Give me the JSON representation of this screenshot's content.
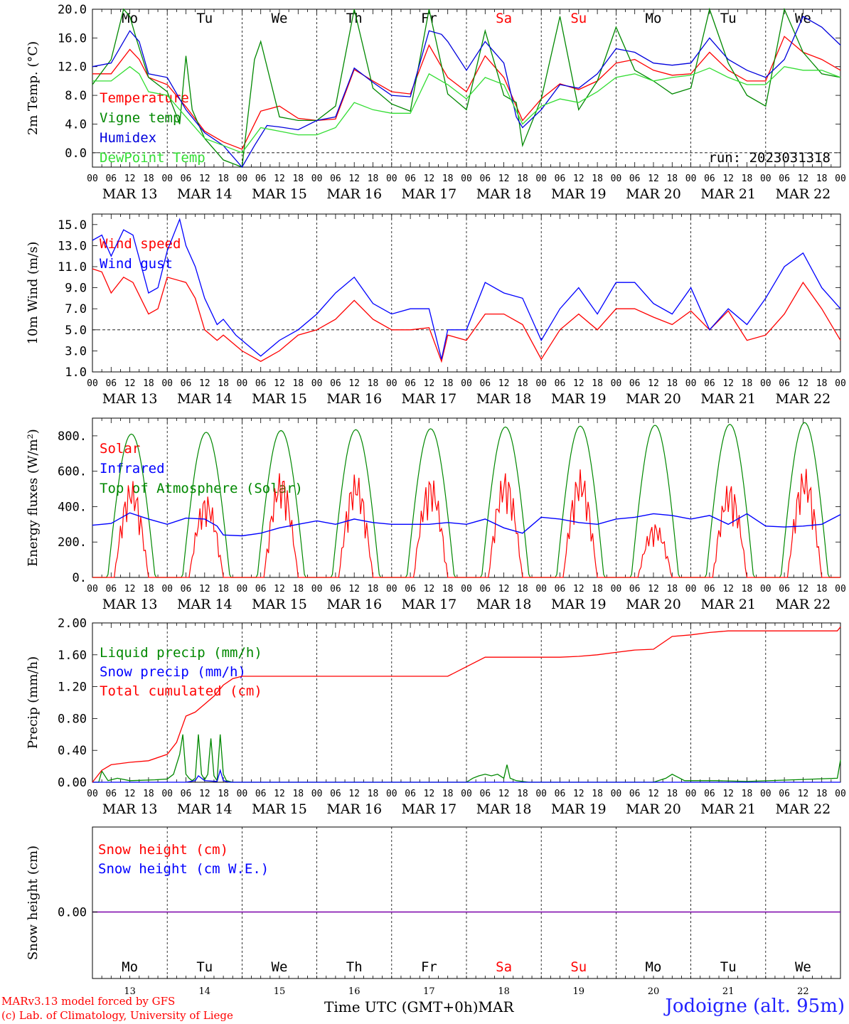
{
  "footer": {
    "model_line": "MARv3.13 model forced by GFS",
    "lab_line": "(c) Lab. of Climatology, University of Liege",
    "time_label": "Time UTC (GMT+0h)",
    "month": "MAR",
    "station": "Jodoigne (alt. 95m)"
  },
  "days": {
    "weekdays": [
      "Mo",
      "Tu",
      "We",
      "Th",
      "Fr",
      "Sa",
      "Su",
      "Mo",
      "Tu",
      "We"
    ],
    "dates": [
      "MAR 13",
      "MAR 14",
      "MAR 15",
      "MAR 16",
      "MAR 17",
      "MAR 18",
      "MAR 19",
      "MAR 20",
      "MAR 21",
      "MAR 22"
    ],
    "day_numbers": [
      "13",
      "14",
      "15",
      "16",
      "17",
      "18",
      "19",
      "20",
      "21",
      "22"
    ],
    "weekend_color": "#ff0000",
    "hour_ticks": [
      "00",
      "06",
      "12",
      "18"
    ],
    "final_tick": "00"
  },
  "chart_data": [
    {
      "type": "line",
      "ylabel": "2m Temp. (°C)",
      "ylim": [
        -2,
        20
      ],
      "yticks": [
        "0.0",
        "4.0",
        "8.0",
        "12.0",
        "16.0",
        "20.0"
      ],
      "ytick_values": [
        0,
        4,
        8,
        12,
        16,
        20
      ],
      "reference_line": 0,
      "annotation": "run: 2023031318",
      "legend_position": "top-left",
      "x_unit": "hours since MAR 13 00 UTC",
      "series": [
        {
          "name": "Temperature",
          "color": "#ff0000",
          "x": [
            0,
            6,
            12,
            15,
            18,
            24,
            30,
            36,
            42,
            48,
            54,
            60,
            66,
            72,
            78,
            84,
            90,
            96,
            102,
            108,
            114,
            120,
            126,
            132,
            138,
            144,
            150,
            156,
            162,
            168,
            174,
            180,
            186,
            192,
            198,
            204,
            210,
            216,
            222,
            228,
            234,
            240
          ],
          "y": [
            11,
            11,
            14.4,
            13,
            10.5,
            9.5,
            6.4,
            3,
            1.5,
            0.5,
            5.8,
            6.5,
            4.8,
            4.5,
            4.7,
            11.6,
            10,
            8.5,
            8.2,
            15,
            10.5,
            8.5,
            13.5,
            10.5,
            4.5,
            7.5,
            9.6,
            8.8,
            10,
            12.5,
            13,
            11.5,
            10.8,
            11,
            14,
            11.5,
            10,
            10,
            16.2,
            14,
            13,
            11.5
          ]
        },
        {
          "name": "Vigne temp",
          "color": "#008800",
          "x": [
            0,
            6,
            10,
            12,
            14,
            18,
            24,
            28,
            30,
            32,
            36,
            42,
            48,
            52,
            54,
            60,
            66,
            72,
            78,
            84,
            90,
            96,
            102,
            108,
            114,
            120,
            126,
            132,
            136,
            138,
            144,
            150,
            156,
            162,
            168,
            174,
            180,
            186,
            192,
            198,
            204,
            210,
            216,
            222,
            228,
            234,
            240
          ],
          "y": [
            9.5,
            13,
            20,
            19,
            16,
            10.5,
            8.5,
            4,
            13.5,
            6,
            2,
            -1,
            -2,
            13,
            15.5,
            5,
            4.5,
            4.5,
            6.5,
            20,
            9,
            6.8,
            5.8,
            20,
            8.2,
            6,
            17,
            8,
            7,
            1,
            7.5,
            19,
            6,
            10,
            17.5,
            11.5,
            10,
            8.2,
            9,
            20,
            12.5,
            8,
            6.5,
            20,
            14,
            11,
            10.5
          ]
        },
        {
          "name": "Humidex",
          "color": "#0000dd",
          "x": [
            0,
            6,
            12,
            15,
            18,
            24,
            30,
            36,
            42,
            48,
            52,
            56,
            60,
            66,
            72,
            78,
            84,
            90,
            96,
            102,
            108,
            112,
            114,
            120,
            126,
            132,
            136,
            138,
            144,
            150,
            156,
            162,
            168,
            174,
            180,
            186,
            192,
            198,
            204,
            210,
            216,
            222,
            228,
            234,
            240
          ],
          "y": [
            12,
            12.5,
            17,
            15.5,
            11,
            10.5,
            6,
            2.8,
            1,
            -2,
            1,
            3.8,
            3.6,
            3.2,
            4.5,
            5,
            11.8,
            9.8,
            8,
            7.8,
            17,
            16.5,
            15.5,
            11.5,
            15.5,
            12.5,
            5,
            3.5,
            6,
            9.5,
            9,
            11,
            14.5,
            14,
            12.5,
            12.2,
            12.5,
            16,
            13,
            11.5,
            10.5,
            13,
            19,
            17.5,
            15
          ]
        },
        {
          "name": "DewPoint Temp",
          "color": "#33dd33",
          "x": [
            0,
            6,
            12,
            15,
            18,
            24,
            30,
            36,
            42,
            48,
            54,
            60,
            66,
            72,
            78,
            84,
            90,
            96,
            102,
            108,
            114,
            120,
            126,
            132,
            138,
            144,
            150,
            156,
            162,
            168,
            174,
            180,
            186,
            192,
            198,
            204,
            210,
            216,
            222,
            228,
            234,
            240
          ],
          "y": [
            10,
            10,
            12,
            11,
            8.5,
            8,
            5,
            2,
            1,
            0,
            3.5,
            3,
            2.5,
            2.5,
            3.5,
            7,
            6,
            5.5,
            5.5,
            11,
            9.5,
            7.5,
            10.5,
            9.5,
            4,
            6.5,
            7.5,
            7,
            8.5,
            10.5,
            11,
            10,
            10.5,
            10.8,
            11.8,
            10.5,
            9.5,
            9.5,
            12,
            11.5,
            11.5,
            10.5
          ]
        }
      ]
    },
    {
      "type": "line",
      "ylabel": "10m Wind (m/s)",
      "ylim": [
        1,
        16
      ],
      "yticks": [
        "1.0",
        "3.0",
        "5.0",
        "7.0",
        "9.0",
        "11.0",
        "13.0",
        "15.0"
      ],
      "ytick_values": [
        1,
        3,
        5,
        7,
        9,
        11,
        13,
        15
      ],
      "reference_line": 5,
      "legend_position": "top-left",
      "x_unit": "hours since MAR 13 00 UTC",
      "series": [
        {
          "name": "Wind speed",
          "color": "#ff0000",
          "x": [
            0,
            3,
            6,
            10,
            13,
            18,
            21,
            24,
            30,
            33,
            36,
            40,
            42,
            46,
            48,
            54,
            60,
            66,
            72,
            78,
            84,
            90,
            96,
            102,
            108,
            112,
            114,
            120,
            126,
            132,
            138,
            144,
            150,
            156,
            162,
            168,
            174,
            180,
            186,
            192,
            198,
            204,
            210,
            216,
            222,
            228,
            234,
            240
          ],
          "y": [
            10.8,
            10.5,
            8.5,
            10,
            9.5,
            6.5,
            7,
            10,
            9.5,
            8,
            5,
            4,
            4.5,
            3.5,
            3,
            2,
            3,
            4.5,
            5,
            6,
            7.8,
            6,
            5,
            5,
            5.2,
            2,
            4.5,
            4,
            6.5,
            6.5,
            5.5,
            2.2,
            5,
            6.5,
            5,
            7,
            7,
            6.2,
            5.5,
            6.8,
            5,
            6.8,
            4,
            4.5,
            6.5,
            9.5,
            7,
            4
          ]
        },
        {
          "name": "Wind gust",
          "color": "#0000ff",
          "x": [
            0,
            3,
            6,
            10,
            13,
            18,
            21,
            24,
            28,
            30,
            33,
            36,
            40,
            42,
            46,
            48,
            54,
            60,
            66,
            72,
            78,
            84,
            90,
            96,
            102,
            108,
            112,
            114,
            120,
            126,
            132,
            138,
            144,
            150,
            156,
            162,
            168,
            174,
            180,
            186,
            192,
            198,
            204,
            210,
            216,
            222,
            228,
            234,
            240
          ],
          "y": [
            13.5,
            14,
            12,
            14.5,
            14,
            8.5,
            9,
            12.5,
            15.5,
            13,
            11,
            8,
            5.5,
            6,
            4.5,
            4,
            2.5,
            4,
            5,
            6.5,
            8.5,
            10,
            7.5,
            6.5,
            7,
            7,
            2.2,
            5,
            5,
            9.5,
            8.5,
            8,
            4,
            7,
            9,
            6.5,
            9.5,
            9.5,
            7.5,
            6.5,
            9,
            5,
            7,
            5.5,
            8,
            11,
            12.3,
            9,
            7
          ]
        }
      ]
    },
    {
      "type": "line",
      "ylabel": "Energy fluxes (W/m²)",
      "ylim": [
        0,
        900
      ],
      "yticks": [
        "0.",
        "200.",
        "400.",
        "600.",
        "800."
      ],
      "ytick_values": [
        0,
        200,
        400,
        600,
        800
      ],
      "legend_position": "top-left",
      "x_unit": "hours since MAR 13 00 UTC",
      "series": [
        {
          "name": "Solar",
          "color": "#ff0000",
          "day_peaks": [
            550,
            470,
            600,
            590,
            575,
            600,
            610,
            310,
            540,
            620
          ]
        },
        {
          "name": "Infrared",
          "color": "#0000ff",
          "x": [
            0,
            6,
            12,
            18,
            24,
            30,
            36,
            40,
            42,
            48,
            54,
            60,
            66,
            72,
            78,
            84,
            90,
            96,
            102,
            108,
            114,
            120,
            126,
            132,
            138,
            144,
            150,
            156,
            162,
            168,
            174,
            180,
            186,
            192,
            198,
            204,
            210,
            216,
            222,
            228,
            234,
            240
          ],
          "y": [
            295,
            305,
            365,
            330,
            300,
            335,
            330,
            290,
            240,
            235,
            250,
            280,
            300,
            320,
            300,
            330,
            310,
            300,
            300,
            300,
            310,
            300,
            330,
            280,
            250,
            340,
            330,
            310,
            300,
            330,
            340,
            360,
            350,
            330,
            350,
            300,
            360,
            290,
            285,
            290,
            300,
            355
          ]
        },
        {
          "name": "Top of Atmosphere (Solar)",
          "color": "#008800",
          "day_peaks": [
            810,
            820,
            830,
            835,
            840,
            850,
            855,
            860,
            865,
            875
          ]
        }
      ]
    },
    {
      "type": "line",
      "ylabel": "Precip (mm/h)",
      "ylim": [
        0,
        2.0
      ],
      "yticks": [
        "0.00",
        "0.40",
        "0.80",
        "1.20",
        "1.60",
        "2.00"
      ],
      "ytick_values": [
        0,
        0.4,
        0.8,
        1.2,
        1.6,
        2.0
      ],
      "legend_position": "top-left",
      "x_unit": "hours since MAR 13 00 UTC",
      "series": [
        {
          "name": "Liquid precip (mm/h)",
          "color": "#008800",
          "x": [
            0,
            2,
            3,
            5,
            8,
            12,
            20,
            24,
            26,
            28,
            29,
            30,
            31,
            32,
            33,
            34,
            35,
            36,
            37,
            38,
            39,
            40,
            41,
            42,
            43,
            44,
            45,
            46,
            47,
            48,
            120,
            122,
            124,
            126,
            128,
            130,
            132,
            133,
            134,
            136,
            140,
            180,
            184,
            186,
            188,
            190,
            200,
            210,
            239,
            240
          ],
          "y": [
            0,
            0,
            0.14,
            0.02,
            0.05,
            0.02,
            0.03,
            0.04,
            0.1,
            0.35,
            0.6,
            0.1,
            0.05,
            0.02,
            0.05,
            0.6,
            0.1,
            0.03,
            0.1,
            0.55,
            0.08,
            0.02,
            0.6,
            0.1,
            0.02,
            0.01,
            0,
            0,
            0,
            0,
            0,
            0.05,
            0.08,
            0.1,
            0.08,
            0.1,
            0.05,
            0.22,
            0.05,
            0.02,
            0,
            0,
            0.05,
            0.1,
            0.06,
            0.02,
            0.02,
            0.01,
            0.05,
            0.28
          ]
        },
        {
          "name": "Snow precip (mm/h)",
          "color": "#0000ff",
          "x": [
            0,
            30,
            33,
            34,
            36,
            40,
            41,
            42,
            44,
            240
          ],
          "y": [
            0,
            0,
            0.02,
            0.08,
            0.02,
            0.01,
            0.15,
            0.02,
            0,
            0
          ]
        },
        {
          "name": "Total cumulated (cm)",
          "color": "#ff0000",
          "x": [
            0,
            3,
            6,
            12,
            18,
            24,
            27,
            30,
            33,
            36,
            39,
            42,
            45,
            48,
            60,
            72,
            84,
            96,
            108,
            114,
            120,
            126,
            132,
            138,
            144,
            150,
            156,
            162,
            168,
            174,
            180,
            186,
            192,
            198,
            204,
            210,
            216,
            222,
            228,
            234,
            239,
            240
          ],
          "y": [
            0,
            0.15,
            0.22,
            0.25,
            0.27,
            0.35,
            0.5,
            0.83,
            0.88,
            0.98,
            1.08,
            1.22,
            1.3,
            1.33,
            1.33,
            1.33,
            1.33,
            1.33,
            1.33,
            1.33,
            1.45,
            1.57,
            1.57,
            1.57,
            1.57,
            1.57,
            1.58,
            1.6,
            1.63,
            1.66,
            1.67,
            1.83,
            1.85,
            1.88,
            1.9,
            1.9,
            1.9,
            1.9,
            1.9,
            1.9,
            1.9,
            1.95
          ]
        }
      ]
    },
    {
      "type": "line",
      "ylabel": "Snow height (cm)",
      "yticks": [
        "0.00"
      ],
      "ytick_values": [
        0
      ],
      "legend_position": "top-left",
      "x_unit": "hours since MAR 13 00 UTC",
      "series": [
        {
          "name": "Snow height (cm)",
          "color": "#ff0000",
          "x": [
            0,
            240
          ],
          "y": [
            0,
            0
          ]
        },
        {
          "name": "Snow height (cm W.E.)",
          "color": "#0000ff",
          "x": [
            0,
            240
          ],
          "y": [
            0,
            0
          ]
        }
      ]
    }
  ]
}
